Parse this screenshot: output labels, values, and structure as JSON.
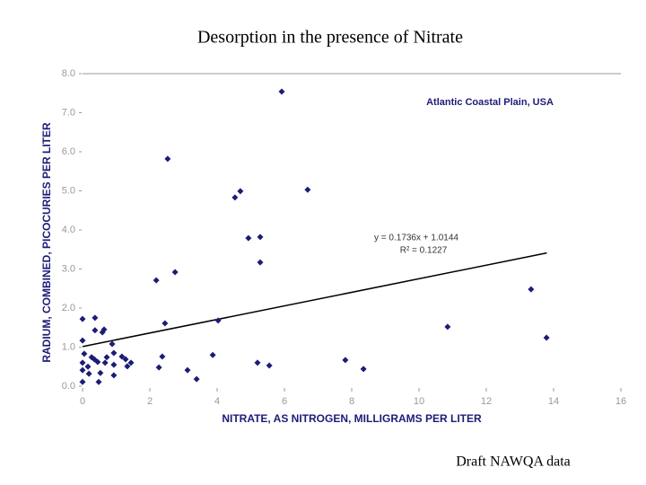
{
  "chart_data": {
    "type": "scatter",
    "title": "Desorption in the presence of Nitrate",
    "x_label": "NITRATE, AS NITROGEN, MILLIGRAMS PER LITER",
    "y_label": "RADIUM, COMBINED, PICOCURIES PER LITER",
    "color": "#1c1c78",
    "x": [
      0,
      0,
      0.05,
      0,
      0,
      0,
      0.16,
      0.19,
      0.27,
      0.37,
      0.37,
      0.35,
      0.45,
      0.48,
      0.53,
      0.59,
      0.64,
      0.67,
      0.72,
      0.88,
      0.93,
      0.93,
      0.93,
      1.17,
      1.28,
      1.33,
      1.44,
      2.19,
      2.27,
      2.37,
      2.45,
      2.53,
      2.75,
      3.12,
      3.39,
      3.87,
      4.03,
      4.53,
      4.69,
      4.93,
      5.2,
      5.28,
      5.28,
      5.55,
      5.92,
      6.69,
      7.81,
      8.35,
      10.85,
      13.33,
      13.79
    ],
    "values": [
      1.72,
      1.17,
      0.83,
      0.6,
      0.41,
      0.11,
      0.5,
      0.32,
      0.74,
      1.75,
      1.43,
      0.69,
      0.62,
      0.11,
      0.34,
      1.38,
      1.45,
      0.6,
      0.74,
      1.08,
      0.85,
      0.55,
      0.28,
      0.76,
      0.69,
      0.51,
      0.6,
      2.71,
      0.48,
      0.76,
      1.61,
      5.82,
      2.92,
      0.41,
      0.18,
      0.8,
      1.68,
      4.83,
      4.99,
      3.79,
      0.6,
      3.82,
      3.17,
      0.53,
      7.54,
      5.03,
      0.67,
      0.44,
      1.52,
      2.48,
      1.24
    ],
    "trendline": {
      "x": [
        0,
        13.8
      ],
      "values": [
        1.0144,
        3.41
      ],
      "color": "#000000"
    },
    "annotations": [
      "Atlantic Coastal Plain, USA",
      "y = 0.1736x + 1.0144",
      "R² = 0.1227"
    ],
    "xlim": [
      0,
      16
    ],
    "xticks": [
      0,
      2,
      4,
      6,
      8,
      10,
      12,
      14,
      16
    ],
    "ylim": [
      0,
      8
    ],
    "yticks": [
      {
        "value": 0,
        "label": "0.0"
      },
      {
        "value": 1,
        "label": "1.0"
      },
      {
        "value": 2,
        "label": "2.0"
      },
      {
        "value": 3,
        "label": "3.0"
      },
      {
        "value": 4,
        "label": "4.0"
      },
      {
        "value": 5,
        "label": "5.0"
      },
      {
        "value": 6,
        "label": "6.0"
      },
      {
        "value": 7,
        "label": "7.0"
      },
      {
        "value": 8,
        "label": "8.0"
      }
    ],
    "grid": false
  },
  "footer": "Draft NAWQA data"
}
